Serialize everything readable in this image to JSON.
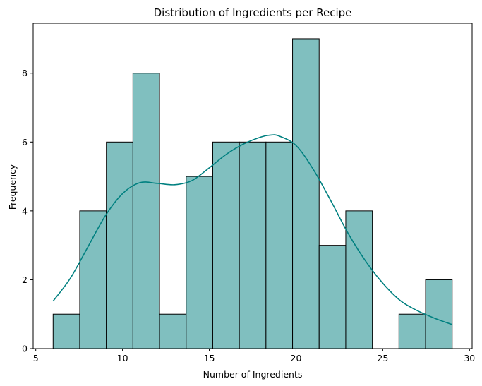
{
  "chart_data": {
    "type": "bar",
    "title": "Distribution of Ingredients per Recipe",
    "xlabel": "Number of Ingredients",
    "ylabel": "Frequency",
    "xlim": [
      4.85,
      30.15
    ],
    "ylim": [
      0,
      9.45
    ],
    "x_ticks": [
      5,
      10,
      15,
      20,
      25,
      30
    ],
    "y_ticks": [
      0,
      2,
      4,
      6,
      8
    ],
    "bins": [
      {
        "start": 6.0,
        "end": 7.533,
        "count": 1
      },
      {
        "start": 7.533,
        "end": 9.067,
        "count": 4
      },
      {
        "start": 9.067,
        "end": 10.6,
        "count": 6
      },
      {
        "start": 10.6,
        "end": 12.133,
        "count": 8
      },
      {
        "start": 12.133,
        "end": 13.667,
        "count": 1
      },
      {
        "start": 13.667,
        "end": 15.2,
        "count": 5
      },
      {
        "start": 15.2,
        "end": 16.733,
        "count": 6
      },
      {
        "start": 16.733,
        "end": 18.267,
        "count": 6
      },
      {
        "start": 18.267,
        "end": 19.8,
        "count": 6
      },
      {
        "start": 19.8,
        "end": 21.333,
        "count": 9
      },
      {
        "start": 21.333,
        "end": 22.867,
        "count": 3
      },
      {
        "start": 22.867,
        "end": 24.4,
        "count": 4
      },
      {
        "start": 24.4,
        "end": 25.933,
        "count": 0
      },
      {
        "start": 25.933,
        "end": 27.467,
        "count": 1
      },
      {
        "start": 27.467,
        "end": 29.0,
        "count": 2
      }
    ],
    "kde": {
      "x": [
        6.0,
        7.0,
        8.0,
        9.0,
        10.0,
        11.0,
        12.0,
        13.0,
        14.0,
        15.0,
        16.0,
        17.0,
        18.0,
        18.5,
        19.0,
        20.0,
        21.0,
        22.0,
        23.0,
        24.0,
        25.0,
        26.0,
        27.0,
        28.0,
        29.0
      ],
      "y": [
        1.38,
        2.05,
        2.95,
        3.85,
        4.5,
        4.82,
        4.8,
        4.76,
        4.88,
        5.25,
        5.65,
        5.95,
        6.15,
        6.2,
        6.18,
        5.9,
        5.2,
        4.3,
        3.35,
        2.55,
        1.9,
        1.4,
        1.1,
        0.88,
        0.7
      ]
    },
    "colors": {
      "bar_fill": "#80bfbf",
      "bar_edge": "#000000",
      "kde_line": "#008080"
    },
    "grid": false,
    "legend": "none"
  }
}
